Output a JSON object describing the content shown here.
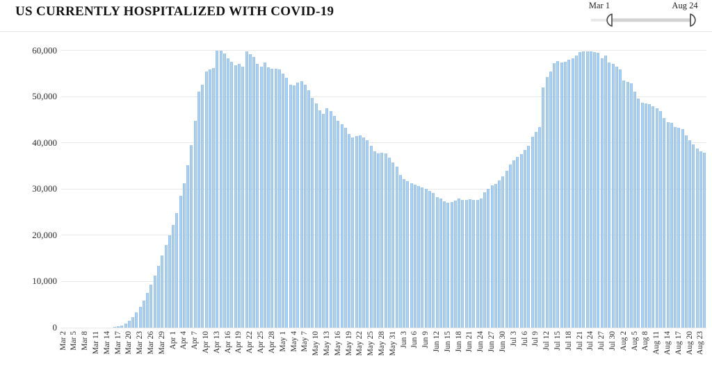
{
  "title": "US CURRENTLY HOSPITALIZED WITH COVID-19",
  "slider": {
    "start_label": "Mar 1",
    "end_label": "Aug 24"
  },
  "colors": {
    "bar": "#aed1f3",
    "bar_edge": "#8cbae9",
    "grid": "#e8e8e8",
    "title_text": "#141414",
    "tick_text": "#2e2e2e",
    "slider_track": "#d2d2d2",
    "slider_handle_outline": "#4d4d4d"
  },
  "chart_data": {
    "type": "bar",
    "title": "US CURRENTLY HOSPITALIZED WITH COVID-19",
    "ylabel": "",
    "xlabel": "",
    "ylim": [
      0,
      60000
    ],
    "ytick_interval": 10000,
    "yticks": [
      "0",
      "10,000",
      "20,000",
      "30,000",
      "40,000",
      "50,000",
      "60,000"
    ],
    "xtick_every_n_days": 3,
    "grid": true,
    "legend": false,
    "dates": [
      "Mar 2",
      "Mar 3",
      "Mar 4",
      "Mar 5",
      "Mar 6",
      "Mar 7",
      "Mar 8",
      "Mar 9",
      "Mar 10",
      "Mar 11",
      "Mar 12",
      "Mar 13",
      "Mar 14",
      "Mar 15",
      "Mar 16",
      "Mar 17",
      "Mar 18",
      "Mar 19",
      "Mar 20",
      "Mar 21",
      "Mar 22",
      "Mar 23",
      "Mar 24",
      "Mar 25",
      "Mar 26",
      "Mar 27",
      "Mar 28",
      "Mar 29",
      "Mar 30",
      "Mar 31",
      "Apr 1",
      "Apr 2",
      "Apr 3",
      "Apr 4",
      "Apr 5",
      "Apr 6",
      "Apr 7",
      "Apr 8",
      "Apr 9",
      "Apr 10",
      "Apr 11",
      "Apr 12",
      "Apr 13",
      "Apr 14",
      "Apr 15",
      "Apr 16",
      "Apr 17",
      "Apr 18",
      "Apr 19",
      "Apr 20",
      "Apr 21",
      "Apr 22",
      "Apr 23",
      "Apr 24",
      "Apr 25",
      "Apr 26",
      "Apr 27",
      "Apr 28",
      "Apr 29",
      "Apr 30",
      "May 1",
      "May 2",
      "May 3",
      "May 4",
      "May 5",
      "May 6",
      "May 7",
      "May 8",
      "May 9",
      "May 10",
      "May 11",
      "May 12",
      "May 13",
      "May 14",
      "May 15",
      "May 16",
      "May 17",
      "May 18",
      "May 19",
      "May 20",
      "May 21",
      "May 22",
      "May 23",
      "May 24",
      "May 25",
      "May 26",
      "May 27",
      "May 28",
      "May 29",
      "May 30",
      "May 31",
      "Jun 1",
      "Jun 2",
      "Jun 3",
      "Jun 4",
      "Jun 5",
      "Jun 6",
      "Jun 7",
      "Jun 8",
      "Jun 9",
      "Jun 10",
      "Jun 11",
      "Jun 12",
      "Jun 13",
      "Jun 14",
      "Jun 15",
      "Jun 16",
      "Jun 17",
      "Jun 18",
      "Jun 19",
      "Jun 20",
      "Jun 21",
      "Jun 22",
      "Jun 23",
      "Jun 24",
      "Jun 25",
      "Jun 26",
      "Jun 27",
      "Jun 28",
      "Jun 29",
      "Jun 30",
      "Jul 1",
      "Jul 2",
      "Jul 3",
      "Jul 4",
      "Jul 5",
      "Jul 6",
      "Jul 7",
      "Jul 8",
      "Jul 9",
      "Jul 10",
      "Jul 11",
      "Jul 12",
      "Jul 13",
      "Jul 14",
      "Jul 15",
      "Jul 16",
      "Jul 17",
      "Jul 18",
      "Jul 19",
      "Jul 20",
      "Jul 21",
      "Jul 22",
      "Jul 23",
      "Jul 24",
      "Jul 25",
      "Jul 26",
      "Jul 27",
      "Jul 28",
      "Jul 29",
      "Jul 30",
      "Jul 31",
      "Aug 1",
      "Aug 2",
      "Aug 3",
      "Aug 4",
      "Aug 5",
      "Aug 6",
      "Aug 7",
      "Aug 8",
      "Aug 9",
      "Aug 10",
      "Aug 11",
      "Aug 12",
      "Aug 13",
      "Aug 14",
      "Aug 15",
      "Aug 16",
      "Aug 17",
      "Aug 18",
      "Aug 19",
      "Aug 20",
      "Aug 21",
      "Aug 22",
      "Aug 23",
      "Aug 24"
    ],
    "values": [
      0,
      0,
      0,
      0,
      0,
      0,
      0,
      0,
      0,
      0,
      0,
      0,
      0,
      0,
      100,
      250,
      500,
      900,
      1500,
      2300,
      3300,
      4500,
      5900,
      7500,
      9300,
      11300,
      13400,
      15600,
      17800,
      20000,
      22200,
      24800,
      28600,
      31300,
      35100,
      39500,
      44800,
      51000,
      52600,
      55400,
      55800,
      56200,
      59900,
      60000,
      59300,
      58300,
      57500,
      56700,
      57100,
      56500,
      59800,
      59100,
      58600,
      57000,
      56500,
      57300,
      56300,
      56000,
      56000,
      55800,
      55000,
      54100,
      52600,
      52400,
      53000,
      53300,
      52500,
      51400,
      49700,
      48500,
      47000,
      46300,
      47400,
      46900,
      45800,
      44800,
      44000,
      43200,
      41900,
      41200,
      41400,
      41600,
      41200,
      40600,
      39400,
      38200,
      37700,
      37900,
      37700,
      36800,
      35800,
      34800,
      33100,
      32200,
      31700,
      31200,
      31000,
      30700,
      30400,
      30100,
      29600,
      29100,
      28300,
      27900,
      27300,
      27100,
      27200,
      27500,
      27900,
      27700,
      27600,
      27800,
      27600,
      27700,
      27900,
      29300,
      30000,
      30800,
      31100,
      31900,
      32800,
      34000,
      35300,
      36200,
      37000,
      37500,
      38400,
      39400,
      41300,
      42300,
      43400,
      52000,
      54200,
      55400,
      57200,
      57600,
      57400,
      57500,
      57900,
      58300,
      58900,
      59600,
      59700,
      59800,
      59700,
      59600,
      59400,
      58300,
      58800,
      57400,
      57100,
      56400,
      55800,
      53500,
      53100,
      52900,
      51000,
      49600,
      48700,
      48500,
      48300,
      47900,
      47400,
      46800,
      45400,
      44500,
      44300,
      43400,
      43200,
      42900,
      41600,
      40600,
      39600,
      38700,
      38200,
      37900
    ]
  }
}
